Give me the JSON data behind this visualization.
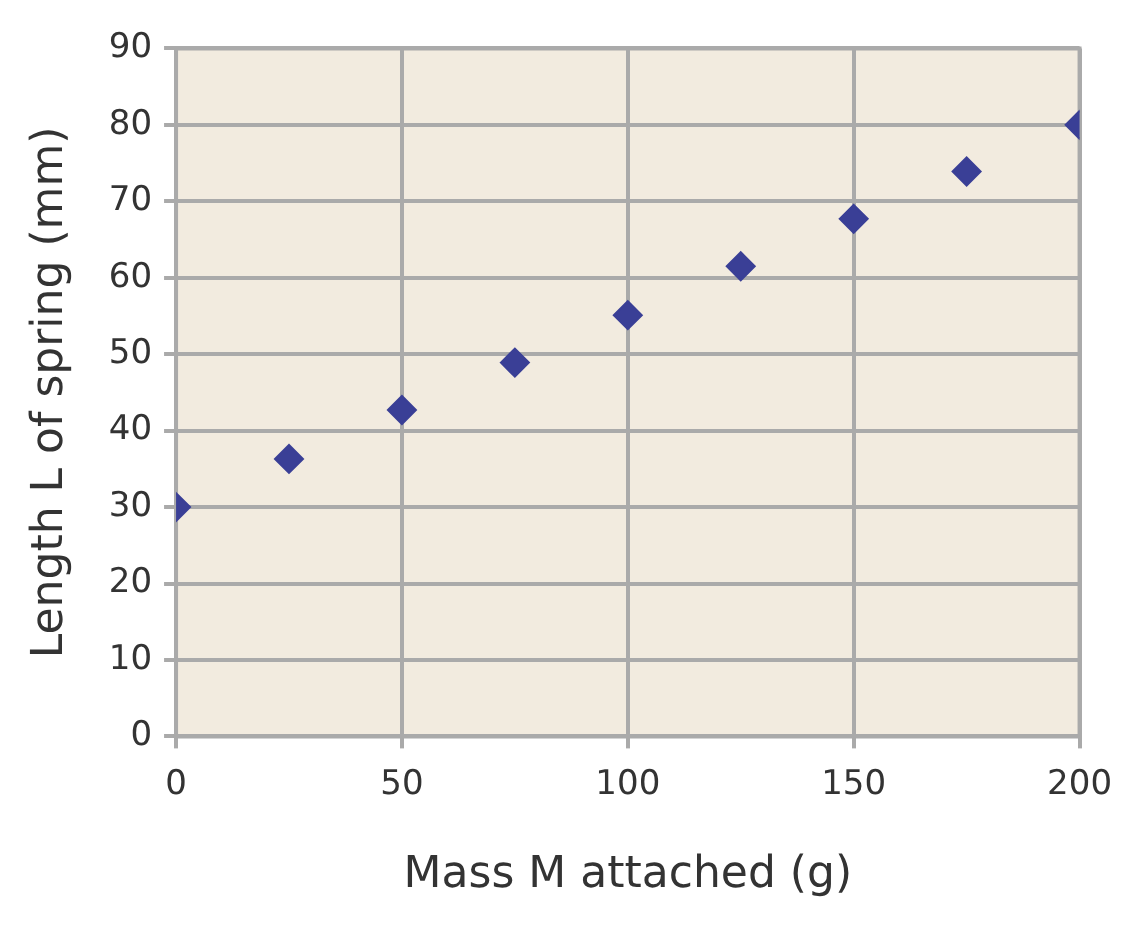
{
  "chart_data": {
    "type": "scatter",
    "xlabel": "Mass M attached (g)",
    "ylabel": "Length L of spring (mm)",
    "x": [
      0,
      25,
      50,
      75,
      100,
      125,
      150,
      175,
      200
    ],
    "series": [
      {
        "color": "#3a3f96",
        "values": [
          30,
          36.3,
          42.7,
          48.9,
          55.1,
          61.5,
          67.7,
          73.9,
          80
        ]
      }
    ],
    "xlim": [
      0,
      200
    ],
    "xticks": [
      0,
      50,
      100,
      150,
      200
    ],
    "ylim": [
      0,
      90
    ],
    "yticks": [
      0,
      10,
      20,
      30,
      40,
      50,
      60,
      70,
      80,
      90
    ],
    "grid": true,
    "marker": "diamond",
    "legend": false
  }
}
